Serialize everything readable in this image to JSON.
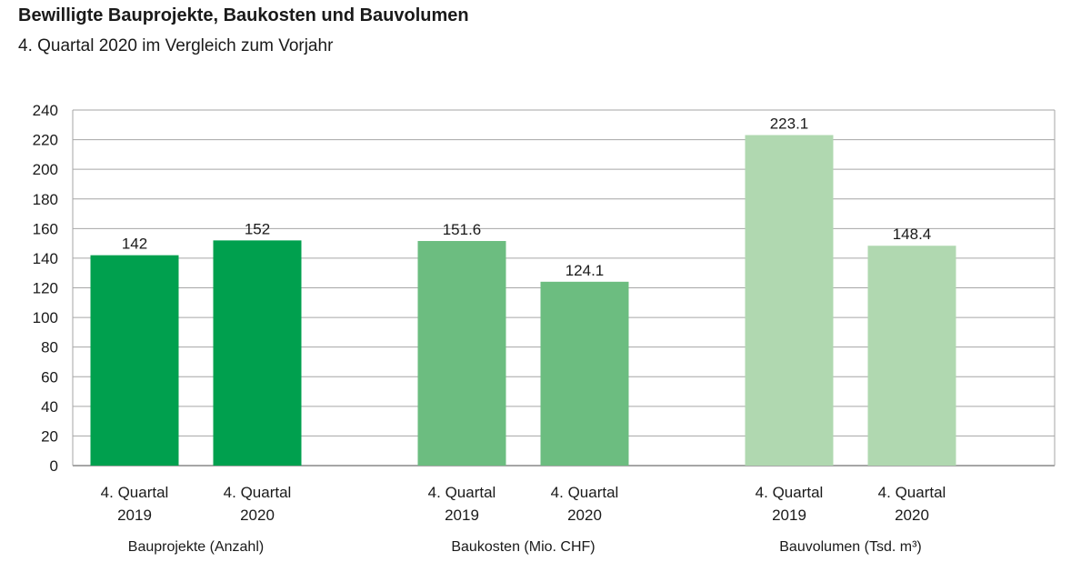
{
  "chart_data": {
    "type": "bar",
    "title": "Bewilligte Bauprojekte, Baukosten und Bauvolumen",
    "subtitle": "4. Quartal 2020 im Vergleich zum Vorjahr",
    "ylim": [
      0,
      240
    ],
    "yticks": [
      0,
      20,
      40,
      60,
      80,
      100,
      120,
      140,
      160,
      180,
      200,
      220,
      240
    ],
    "grid": true,
    "groups": [
      {
        "name": "Bauprojekte (Anzahl)",
        "color": "#00a04e",
        "bars": [
          {
            "label": [
              "4. Quartal",
              "2019"
            ],
            "value": 142,
            "value_label": "142"
          },
          {
            "label": [
              "4. Quartal",
              "2020"
            ],
            "value": 152,
            "value_label": "152"
          }
        ]
      },
      {
        "name": "Baukosten (Mio. CHF)",
        "color": "#6cbd80",
        "bars": [
          {
            "label": [
              "4. Quartal",
              "2019"
            ],
            "value": 151.6,
            "value_label": "151.6"
          },
          {
            "label": [
              "4. Quartal",
              "2020"
            ],
            "value": 124.1,
            "value_label": "124.1"
          }
        ]
      },
      {
        "name": "Bauvolumen (Tsd. m³)",
        "color": "#b0d8b0",
        "bars": [
          {
            "label": [
              "4. Quartal",
              "2019"
            ],
            "value": 223.1,
            "value_label": "223.1"
          },
          {
            "label": [
              "4. Quartal",
              "2020"
            ],
            "value": 148.4,
            "value_label": "148.4"
          }
        ]
      }
    ]
  }
}
